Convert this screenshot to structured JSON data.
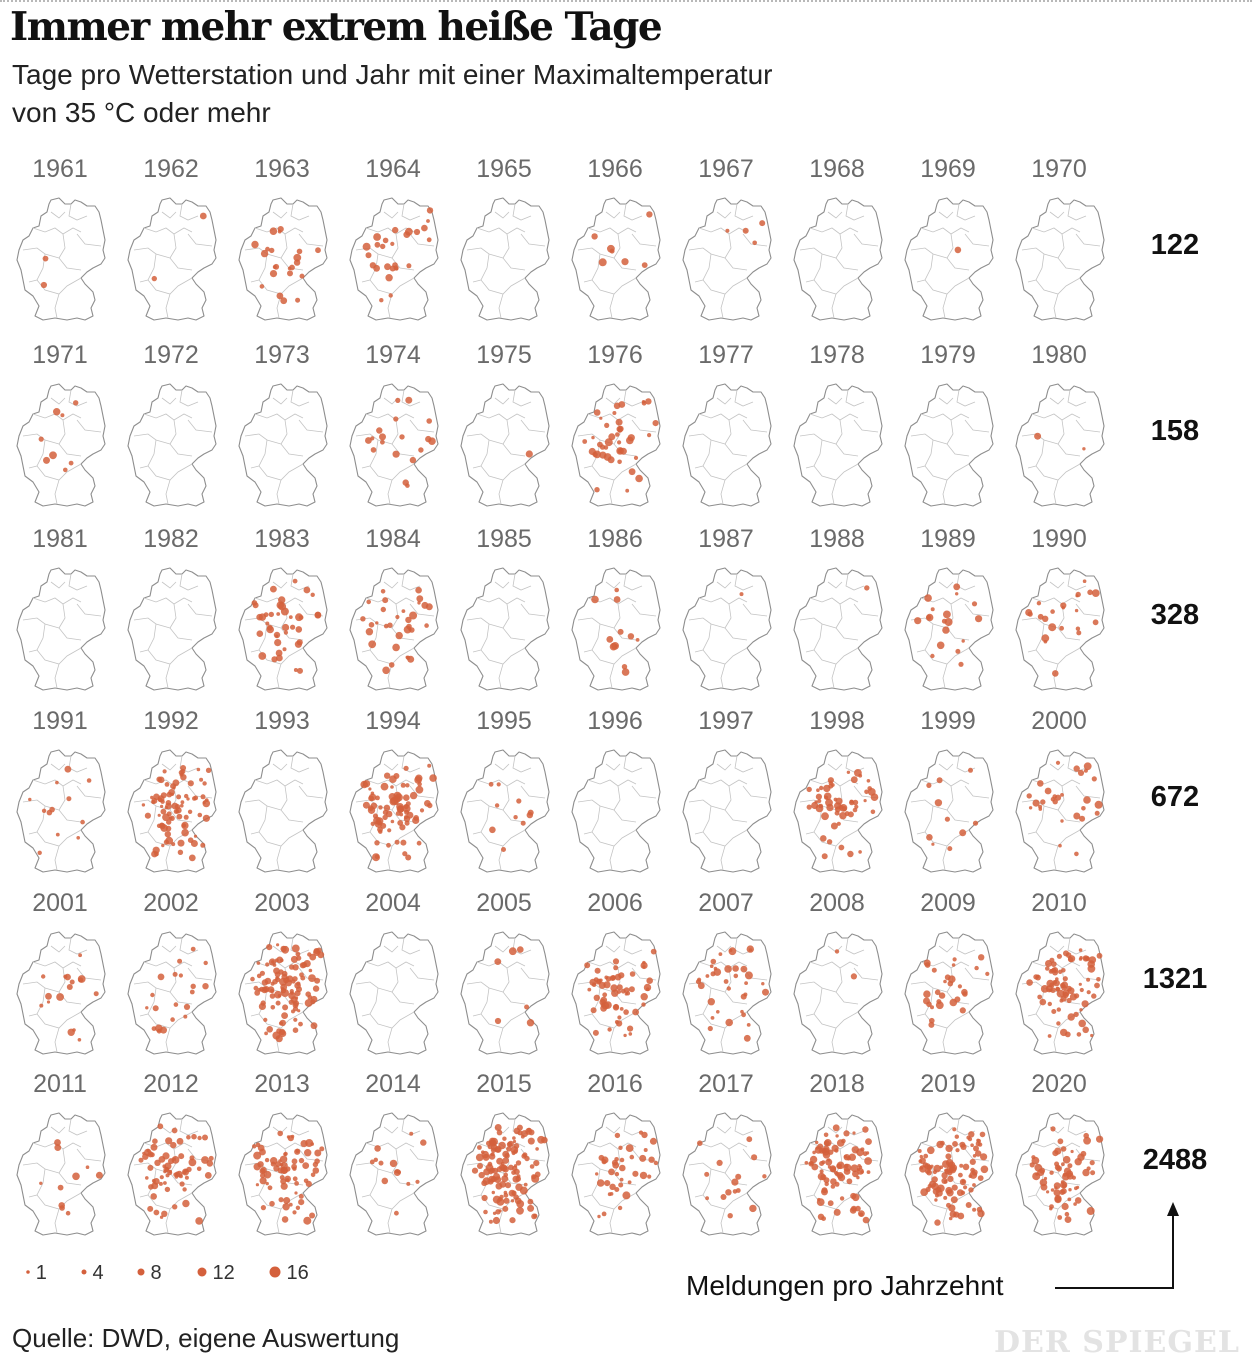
{
  "header": {
    "title": "Immer mehr extrem heiße Tage",
    "subtitle_line1": "Tage pro Wetterstation und Jahr mit einer Maximaltemperatur",
    "subtitle_line2": "von 35 °C oder mehr"
  },
  "footer": {
    "source": "Quelle: DWD, eigene Auswertung",
    "brand": "DER SPIEGEL"
  },
  "colors": {
    "dot": "#d4603c",
    "map_fill": "#ffffff",
    "map_border": "#8e8e8e",
    "state_border": "#c4c4c4",
    "year_label": "#6a6a6a"
  },
  "chart_data": {
    "type": "small-multiples-map",
    "map_subject": "Germany",
    "measure": "Tage mit Maximaltemperatur ≥ 35 °C pro Wetterstation",
    "years": [
      1961,
      1962,
      1963,
      1964,
      1965,
      1966,
      1967,
      1968,
      1969,
      1970,
      1971,
      1972,
      1973,
      1974,
      1975,
      1976,
      1977,
      1978,
      1979,
      1980,
      1981,
      1982,
      1983,
      1984,
      1985,
      1986,
      1987,
      1988,
      1989,
      1990,
      1991,
      1992,
      1993,
      1994,
      1995,
      1996,
      1997,
      1998,
      1999,
      2000,
      2001,
      2002,
      2003,
      2004,
      2005,
      2006,
      2007,
      2008,
      2009,
      2010,
      2011,
      2012,
      2013,
      2014,
      2015,
      2016,
      2017,
      2018,
      2019,
      2020
    ],
    "year_labels": [
      "1961",
      "1962",
      "1963",
      "1964",
      "1965",
      "1966",
      "1967",
      "1968",
      "1969",
      "1970",
      "1971",
      "1972",
      "1973",
      "1974",
      "1975",
      "1976",
      "1977",
      "1978",
      "1979",
      "1980",
      "1981",
      "1982",
      "1983",
      "1984",
      "1985",
      "1986",
      "1987",
      "1988",
      "1989",
      "1990",
      "1991",
      "1992",
      "1993",
      "1994",
      "1995",
      "1996",
      "1997",
      "1998",
      "1999",
      "2000",
      "2001",
      "2002",
      "2003",
      "2004",
      "2005",
      "2006",
      "2007",
      "2008",
      "2009",
      "2010",
      "2011",
      "2012",
      "2013",
      "2014",
      "2015",
      "2016",
      "2017",
      "2018",
      "2019",
      "2020"
    ],
    "decades": [
      {
        "range": "1961–1970",
        "total": 122,
        "total_label": "122"
      },
      {
        "range": "1971–1980",
        "total": 158,
        "total_label": "158"
      },
      {
        "range": "1981–1990",
        "total": 328,
        "total_label": "328"
      },
      {
        "range": "1991–2000",
        "total": 672,
        "total_label": "672"
      },
      {
        "range": "2001–2010",
        "total": 1321,
        "total_label": "1321"
      },
      {
        "range": "2011–2020",
        "total": 2488,
        "total_label": "2488"
      }
    ],
    "station_dot_estimates": [
      2,
      2,
      22,
      26,
      0,
      7,
      4,
      0,
      1,
      0,
      8,
      0,
      0,
      18,
      1,
      42,
      0,
      0,
      0,
      2,
      0,
      0,
      40,
      32,
      0,
      12,
      1,
      1,
      18,
      22,
      12,
      85,
      0,
      82,
      10,
      0,
      0,
      55,
      10,
      28,
      16,
      20,
      110,
      0,
      6,
      60,
      35,
      2,
      28,
      80,
      10,
      70,
      75,
      14,
      120,
      38,
      15,
      90,
      100,
      65
    ],
    "legend": {
      "title": "",
      "values": [
        1,
        4,
        8,
        12,
        16
      ],
      "labels": [
        "1",
        "4",
        "8",
        "12",
        "16"
      ]
    },
    "annotation": "Meldungen pro Jahrzehnt"
  }
}
